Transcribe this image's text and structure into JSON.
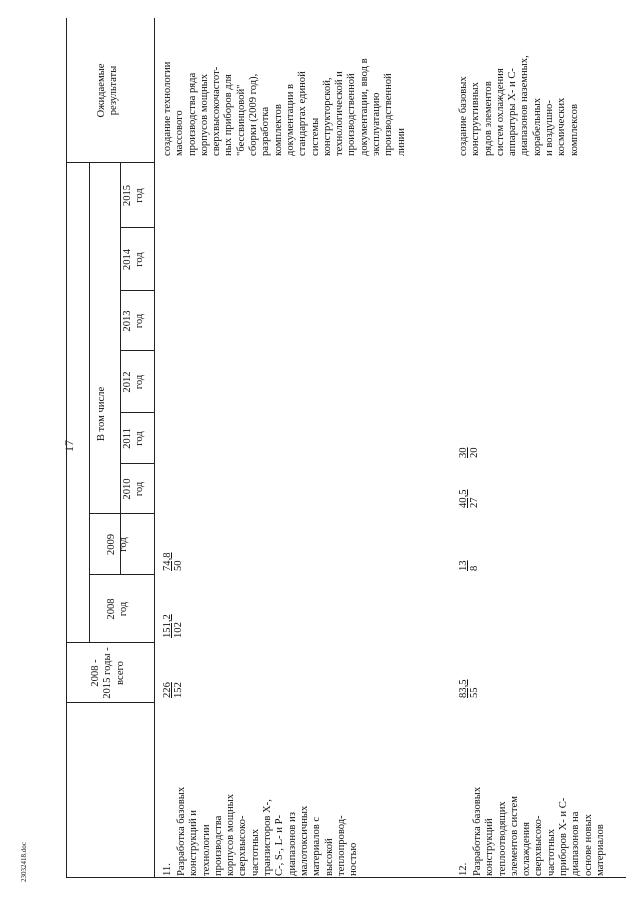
{
  "page_number": "17",
  "footer": "23032418.doc",
  "header": {
    "total": "2008 -\n2015 годы -\nвсего",
    "in_total": "В том числе",
    "years": [
      "2008\nгод",
      "2009\nгод",
      "2010\nгод",
      "2011\nгод",
      "2012\nгод",
      "2013\nгод",
      "2014\nгод",
      "2015\nгод"
    ],
    "results": "Ожидаемые\nрезультаты"
  },
  "rows": [
    {
      "num": "11.",
      "name": "Разработка базовых\nконструкций и\nтехнологии\nпроизводства\nкорпусов мощных\nсверхвысоко-\nчастотных\nтранзисторов X-,\nC-, S-, L- и P-\nдиапазонов из\nмалотоксичных\nматериалов с\nвысокой\nтеплопровод-\nностью",
      "total": {
        "top": "226",
        "bot": "152"
      },
      "y2008": {
        "top": "151,2",
        "bot": "102"
      },
      "y2009": {
        "top": "74,8",
        "bot": "50"
      },
      "results": "создание технологии\nмассового\nпроизводства ряда\nкорпусов мощных\nсверхвысокочастот-\nных приборов для\n\"бессвинцовой\"\nсборки (2009 год),\nразработка\nкомплектов\nдокументации в\nстандартах единой\nсистемы\nконструкторской,\nтехнологической и\nпроизводственной\nдокументации, ввод в\nэксплуатацию\nпроизводственной\nлинии"
    },
    {
      "num": "12.",
      "name": "Разработка базовых\nконструкций\nтеплоотводящих\nэлементов систем\nохлаждения\nсверхвысоко-\nчастотных\nприборов X- и C-\nдиапазонов на\nоснове новых\nматериалов",
      "total": {
        "top": "83,5",
        "bot": "55"
      },
      "y2009": {
        "top": "13",
        "bot": "8"
      },
      "y2010": {
        "top": "40,5",
        "bot": "27"
      },
      "y2011": {
        "top": "30",
        "bot": "20"
      },
      "results": "создание базовых\nконструктивных\nрядов элементов\nсистем охлаждения\nаппаратуры X- и C-\nдиапазонов наземных,\nкорабельных\nи воздушно-\nкосмических\nкомплексов"
    }
  ]
}
